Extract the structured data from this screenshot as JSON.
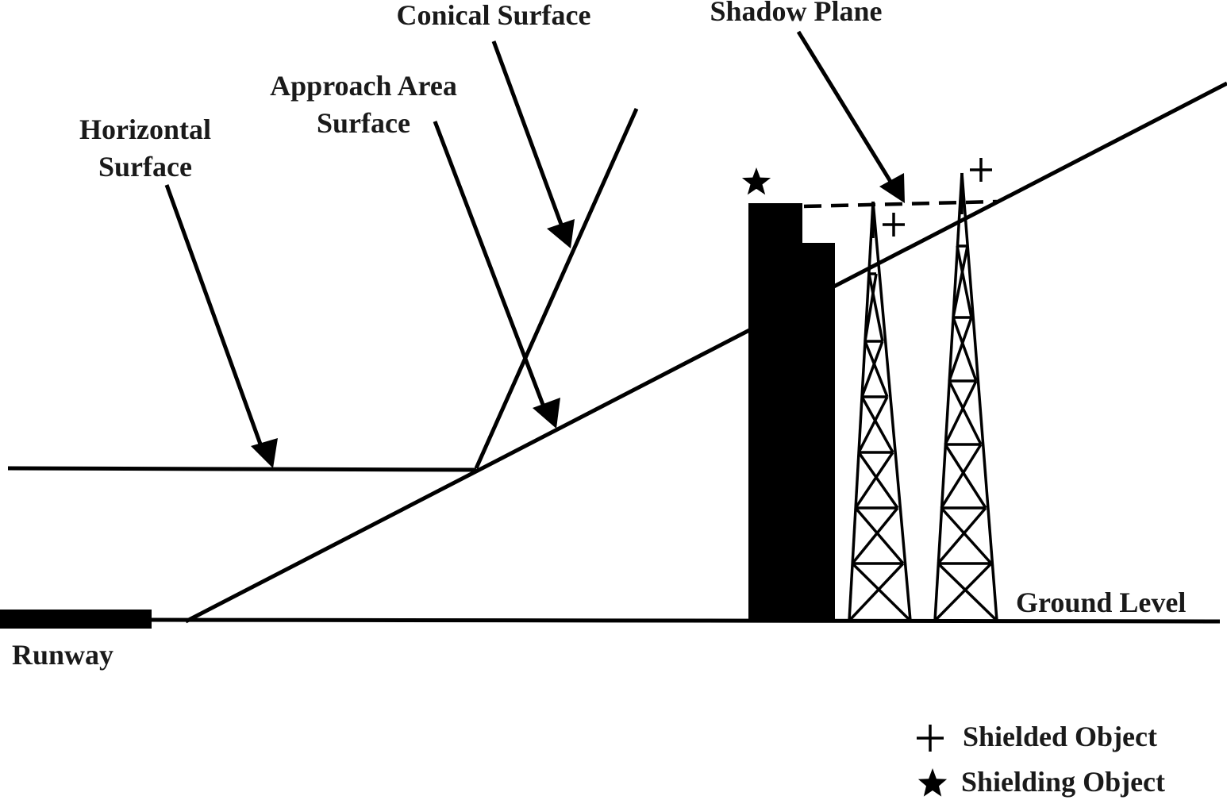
{
  "labels": {
    "conical_surface": "Conical Surface",
    "shadow_plane": "Shadow Plane",
    "approach_area_line1": "Approach Area",
    "approach_area_line2": "Surface",
    "horizontal_line1": "Horizontal",
    "horizontal_line2": "Surface",
    "runway": "Runway",
    "ground_level": "Ground Level"
  },
  "legend": {
    "shielded": {
      "icon": "plus-icon",
      "label": "Shielded Object"
    },
    "shielding": {
      "icon": "star-icon",
      "label": "Shielding Object"
    }
  },
  "colors": {
    "ink": "#000000",
    "background": "#ffffff"
  }
}
